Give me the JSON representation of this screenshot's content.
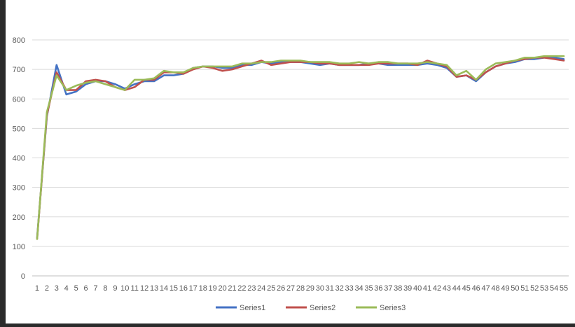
{
  "chart_data": {
    "type": "line",
    "title": "",
    "xlabel": "",
    "ylabel": "",
    "ylim": [
      0,
      800
    ],
    "yticks": [
      "0",
      "100",
      "200",
      "300",
      "400",
      "500",
      "600",
      "700",
      "800"
    ],
    "x": [
      1,
      2,
      3,
      4,
      5,
      6,
      7,
      8,
      9,
      10,
      11,
      12,
      13,
      14,
      15,
      16,
      17,
      18,
      19,
      20,
      21,
      22,
      23,
      24,
      25,
      26,
      27,
      28,
      29,
      30,
      31,
      32,
      33,
      34,
      35,
      36,
      37,
      38,
      39,
      40,
      41,
      42,
      43,
      44,
      45,
      46,
      47,
      48,
      49,
      50,
      51,
      52,
      53,
      54,
      55
    ],
    "grid": true,
    "legend_position": "bottom",
    "series": [
      {
        "name": "Series1",
        "color": "#4472C4",
        "values": [
          130,
          540,
          715,
          615,
          625,
          650,
          660,
          660,
          650,
          635,
          650,
          660,
          660,
          680,
          680,
          685,
          705,
          710,
          710,
          705,
          705,
          715,
          715,
          725,
          720,
          725,
          725,
          725,
          720,
          715,
          720,
          715,
          715,
          715,
          720,
          720,
          715,
          715,
          715,
          715,
          720,
          715,
          705,
          675,
          680,
          660,
          690,
          710,
          720,
          725,
          735,
          735,
          740,
          740,
          735
        ]
      },
      {
        "name": "Series2",
        "color": "#C0504D",
        "values": [
          125,
          545,
          690,
          630,
          630,
          660,
          665,
          660,
          640,
          630,
          640,
          665,
          665,
          690,
          690,
          685,
          700,
          710,
          705,
          695,
          700,
          710,
          720,
          730,
          715,
          720,
          725,
          725,
          725,
          720,
          720,
          715,
          715,
          715,
          715,
          720,
          720,
          720,
          720,
          715,
          730,
          720,
          710,
          675,
          680,
          665,
          690,
          710,
          720,
          730,
          735,
          740,
          740,
          735,
          730
        ]
      },
      {
        "name": "Series3",
        "color": "#9BBB59",
        "values": [
          125,
          555,
          680,
          630,
          645,
          655,
          660,
          650,
          640,
          630,
          665,
          665,
          670,
          695,
          690,
          690,
          705,
          710,
          710,
          710,
          710,
          720,
          720,
          725,
          725,
          730,
          730,
          730,
          725,
          725,
          725,
          720,
          720,
          725,
          720,
          725,
          725,
          720,
          720,
          720,
          725,
          720,
          715,
          680,
          695,
          665,
          700,
          720,
          725,
          730,
          740,
          740,
          745,
          745,
          745
        ]
      }
    ]
  }
}
